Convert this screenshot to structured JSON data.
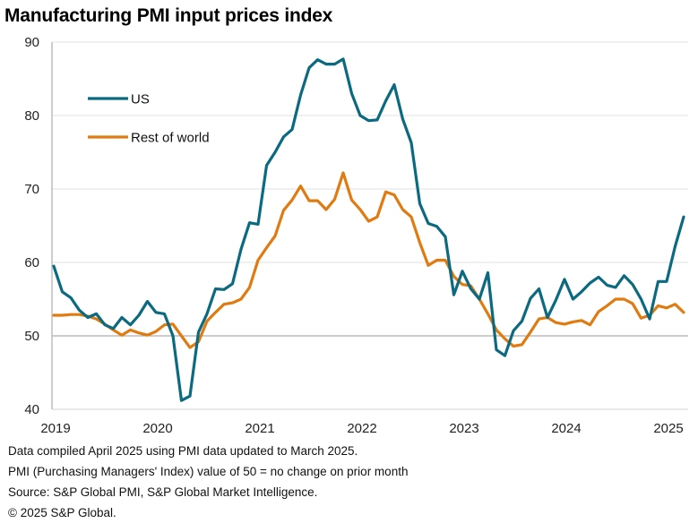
{
  "chart_data": {
    "type": "line",
    "title": "Manufacturing PMI input prices index",
    "xlabel": "",
    "ylabel": "",
    "ylim": [
      40,
      90
    ],
    "yticks": [
      "40",
      "50",
      "60",
      "70",
      "80",
      "90"
    ],
    "xticks": [
      "2019",
      "2020",
      "2021",
      "2022",
      "2023",
      "2024",
      "2025"
    ],
    "x_start": "2019-01",
    "x_end": "2025-03",
    "frequency": "monthly",
    "grid": true,
    "reference_line": 50,
    "legend_position": "top-left",
    "series": [
      {
        "name": "US",
        "color": "#0b6a80",
        "values": [
          59.5,
          56,
          55.2,
          53.5,
          52.5,
          53,
          51.5,
          51,
          52.5,
          51.5,
          52.8,
          54.7,
          53.2,
          53,
          50,
          41.2,
          41.8,
          50.5,
          53,
          56.4,
          56.3,
          57.1,
          61.8,
          65.4,
          65.2,
          73.2,
          75,
          77.1,
          78.1,
          82.8,
          86.5,
          87.6,
          87,
          87,
          87.7,
          83,
          80,
          79.3,
          79.4,
          82,
          84.2,
          79.5,
          76.3,
          68,
          65.3,
          64.9,
          63.5,
          55.6,
          58.8,
          56.4,
          55,
          58.6,
          48.1,
          47.3,
          50.7,
          52,
          55.1,
          56.4,
          52.5,
          54.9,
          57.7,
          55,
          56,
          57.2,
          58,
          56.9,
          56.6,
          58.2,
          57,
          55,
          52.3,
          57.4,
          57.4,
          62.2,
          66.2
        ]
      },
      {
        "name": "Rest of world",
        "color": "#e07b12",
        "values": [
          52.8,
          52.8,
          52.9,
          52.9,
          52.7,
          52.3,
          51.6,
          50.8,
          50.1,
          50.8,
          50.4,
          50.1,
          50.6,
          51.5,
          51.6,
          50,
          48.4,
          49.2,
          52,
          53.2,
          54.3,
          54.5,
          55,
          56.6,
          60.3,
          62,
          63.6,
          67.1,
          68.5,
          70.4,
          68.4,
          68.4,
          67.2,
          68.6,
          72.2,
          68.5,
          67.2,
          65.6,
          66.2,
          69.6,
          69.2,
          67.2,
          66.2,
          62.7,
          59.6,
          60.3,
          60.3,
          58.1,
          57,
          56.8,
          55,
          53,
          50.8,
          49.6,
          48.6,
          48.8,
          50.5,
          52.3,
          52.5,
          51.8,
          51.6,
          51.9,
          52.1,
          51.5,
          53.3,
          54.1,
          55,
          55,
          54.4,
          52.4,
          52.8,
          54.1,
          53.8,
          54.3,
          53.2
        ]
      }
    ]
  },
  "footnotes": [
    "Data compiled April 2025 using PMI data updated to March 2025.",
    "PMI (Purchasing Managers' Index) value of 50 = no change on prior month",
    "Source: S&P Global PMI, S&P Global Market Intelligence.",
    "© 2025 S&P Global."
  ]
}
